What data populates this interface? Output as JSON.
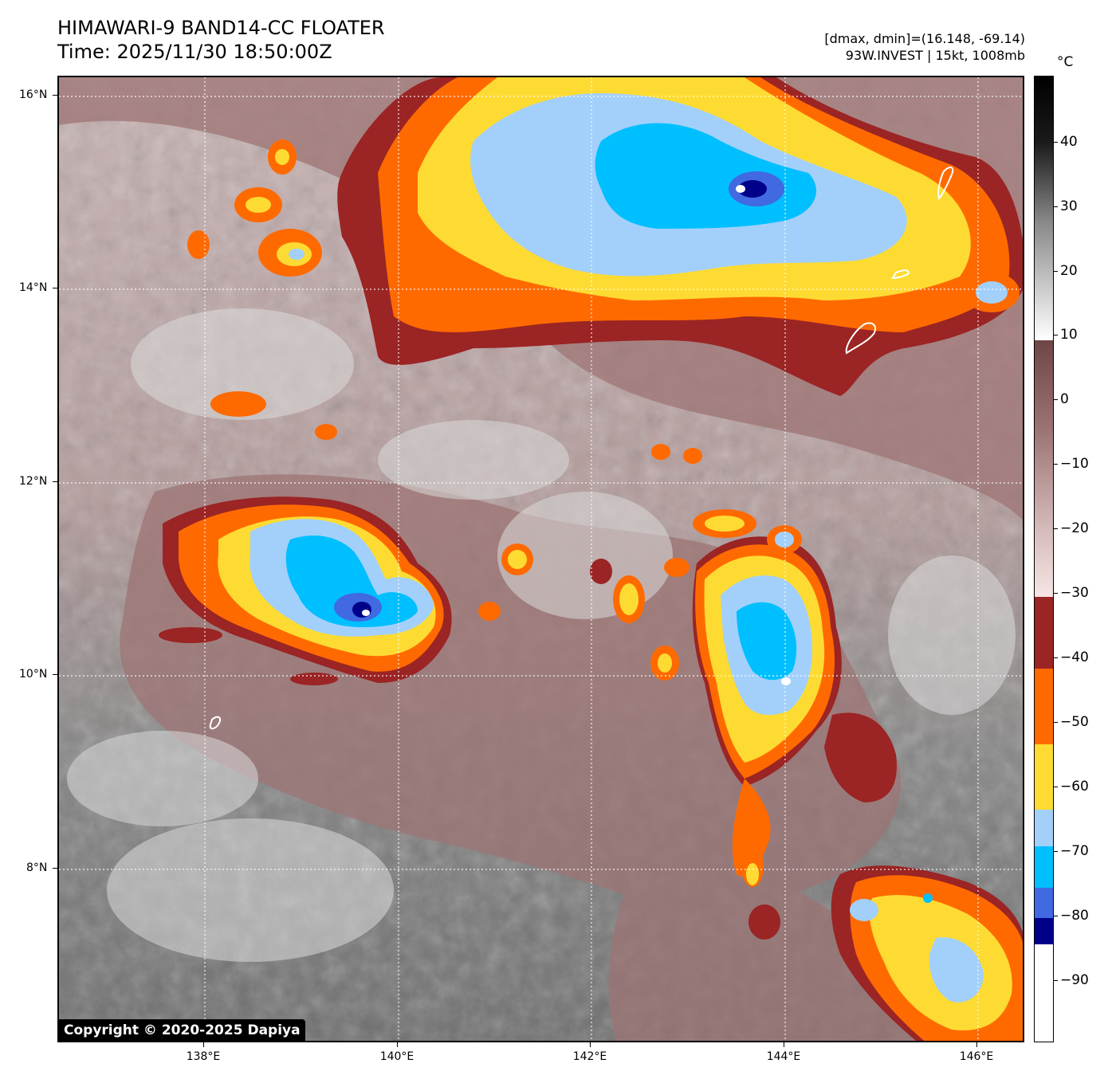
{
  "header": {
    "title_line1": "HIMAWARI-9 BAND14-CC FLOATER",
    "title_line2": "Time: 2025/11/30 18:50:00Z",
    "meta_line1": "[dmax, dmin]=(16.148, -69.14)",
    "meta_line2": "93W.INVEST | 15kt, 1008mb"
  },
  "map": {
    "copyright": "Copyright © 2020-2025 Dapiya",
    "lat_labels": [
      "16°N",
      "14°N",
      "12°N",
      "10°N",
      "8°N"
    ],
    "lon_labels": [
      "138°E",
      "140°E",
      "142°E",
      "144°E",
      "146°E"
    ],
    "lat_range": [
      6.15,
      16.2
    ],
    "lon_range": [
      136.5,
      146.5
    ],
    "gridlines": "dotted white"
  },
  "colorbar": {
    "unit": "°C",
    "tick_labels": [
      "40",
      "30",
      "20",
      "10",
      "0",
      "−10",
      "−20",
      "−30",
      "−40",
      "−50",
      "−60",
      "−70",
      "−80",
      "−90"
    ],
    "tick_values": [
      40,
      30,
      20,
      10,
      0,
      -10,
      -20,
      -30,
      -40,
      -50,
      -60,
      -70,
      -80,
      -90
    ],
    "range": [
      -100,
      50
    ],
    "colors": {
      "above_10": "grayscale white-to-black",
      "-30_to_10": "pink-to-brown",
      "-40_to_-30": "#9b2424",
      "-50_to_-40": "#ff6a00",
      "-60_to_-50": "#fedb32",
      "-70_to_-60": "#a3d0fa",
      "-75_to_-70": "#00bfff",
      "-80_to_-75": "#4169e1",
      "-84_to_-80": "#00008b",
      "below_-84": "#ffffff"
    }
  }
}
